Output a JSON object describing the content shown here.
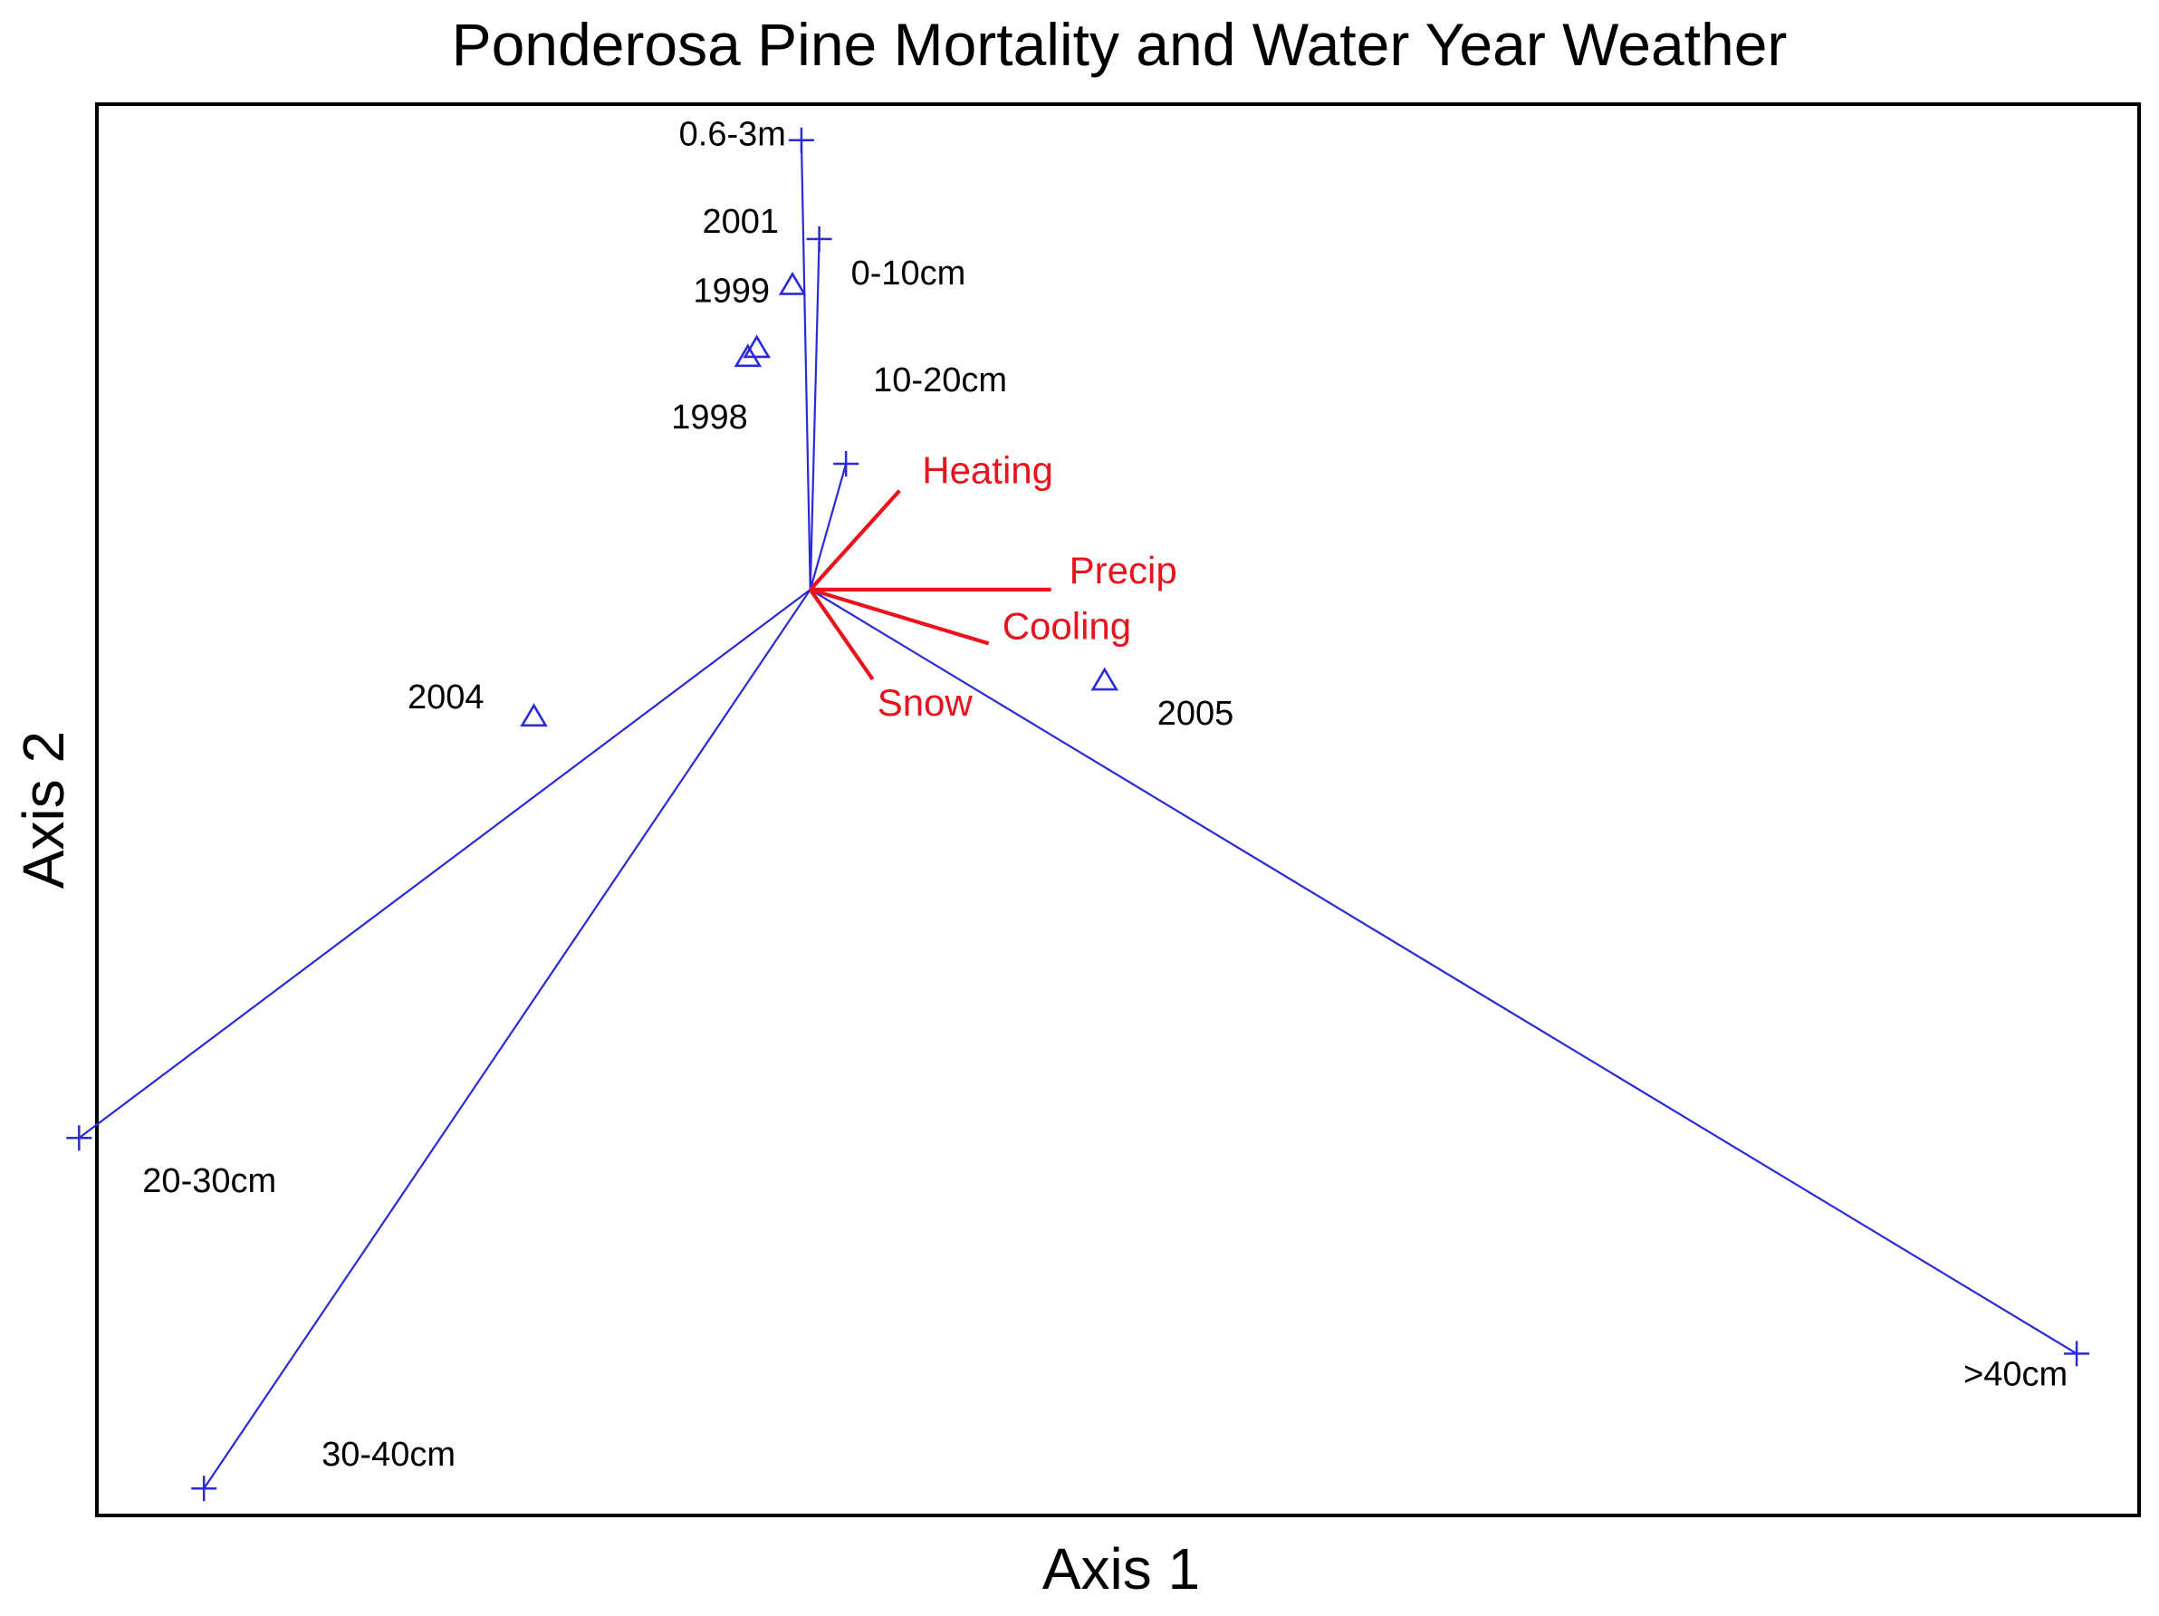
{
  "chart_data": {
    "type": "scatter",
    "title": "Ponderosa Pine Mortality and Water Year Weather",
    "xlabel": "Axis 1",
    "ylabel": "Axis 2",
    "xlim": [
      -80,
      149
    ],
    "ylim": [
      -103,
      54
    ],
    "grid": false,
    "legend": "none",
    "origin": [
      0,
      0
    ],
    "colors": {
      "species": "#2a2ad6",
      "years": "#2a2ad6",
      "environment": "#e8131c",
      "label_text": "#000000",
      "frame": "#000000"
    },
    "series": [
      {
        "marker": "cross",
        "values": [
          {
            "label": "0.6-3m",
            "x": -1,
            "y": 50
          },
          {
            "label": "0-10cm",
            "x": 1,
            "y": 39
          },
          {
            "label": "10-20cm",
            "x": 4,
            "y": 14
          },
          {
            "label": "20-30cm",
            "x": -82,
            "y": -61
          },
          {
            "label": "30-40cm",
            "x": -68,
            "y": -100
          },
          {
            "label": ">40cm",
            "x": 142,
            "y": -85
          }
        ]
      },
      {
        "marker": "triangle",
        "values": [
          {
            "label": "1999",
            "x": -2,
            "y": 34
          },
          {
            "label": "",
            "x": -6,
            "y": 27
          },
          {
            "label": "1998",
            "x": -7,
            "y": 26
          },
          {
            "label": "2004",
            "x": -31,
            "y": -14
          },
          {
            "label": "2005",
            "x": 33,
            "y": -10
          }
        ]
      },
      {
        "marker": "annotation",
        "values": [
          {
            "label": "2001",
            "x": -2,
            "y": 39
          }
        ]
      },
      {
        "marker": "vector",
        "values": [
          {
            "label": "Heating",
            "x": 10,
            "y": 11
          },
          {
            "label": "Precip",
            "x": 27,
            "y": 0
          },
          {
            "label": "Cooling",
            "x": 20,
            "y": -6
          },
          {
            "label": "Snow",
            "x": 7,
            "y": -10
          }
        ]
      }
    ]
  }
}
